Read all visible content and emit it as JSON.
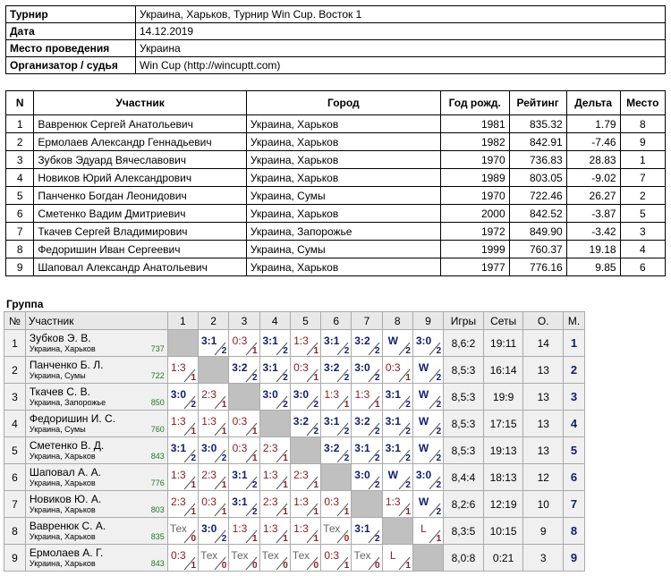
{
  "info": [
    {
      "key": "Турнир",
      "value": "Украина, Харьков, Турнир Win Cup. Восток 1"
    },
    {
      "key": "Дата",
      "value": "14.12.2019"
    },
    {
      "key": "Место проведения",
      "value": "Украина"
    },
    {
      "key": "Организатор / судья",
      "value": "Win Cup (http://wincuptt.com)"
    }
  ],
  "participants": {
    "headers": [
      "N",
      "Участник",
      "Город",
      "Год рожд.",
      "Рейтинг",
      "Дельта",
      "Место"
    ],
    "rows": [
      [
        "1",
        "Вавренюк Сергей Анатольевич",
        "Украина, Харьков",
        "1981",
        "835.32",
        "1.79",
        "8"
      ],
      [
        "2",
        "Ермолаев Александр Геннадьевич",
        "Украина, Харьков",
        "1982",
        "842.91",
        "-7.46",
        "9"
      ],
      [
        "3",
        "Зубков Эдуард Вячеславович",
        "Украина, Харьков",
        "1970",
        "736.83",
        "28.83",
        "1"
      ],
      [
        "4",
        "Новиков Юрий Александрович",
        "Украина, Харьков",
        "1989",
        "803.05",
        "-9.02",
        "7"
      ],
      [
        "5",
        "Панченко Богдан Леонидович",
        "Украина, Сумы",
        "1970",
        "722.46",
        "26.27",
        "2"
      ],
      [
        "6",
        "Сметенко Вадим Дмитриевич",
        "Украина, Харьков",
        "2000",
        "842.52",
        "-3.87",
        "5"
      ],
      [
        "7",
        "Ткачев Сергей Владимирович",
        "Украина, Запорожье",
        "1972",
        "849.90",
        "-3.42",
        "3"
      ],
      [
        "8",
        "Федоришин Иван Сергеевич",
        "Украина, Сумы",
        "1999",
        "760.37",
        "19.18",
        "4"
      ],
      [
        "9",
        "Шаповал Александр Анатольевич",
        "Украина, Харьков",
        "1977",
        "776.16",
        "9.85",
        "6"
      ]
    ]
  },
  "group": {
    "title": "Группа",
    "headers": [
      "№",
      "Участник",
      "1",
      "2",
      "3",
      "4",
      "5",
      "6",
      "7",
      "8",
      "9",
      "Игры",
      "Сеты",
      "О.",
      "М."
    ],
    "rows": [
      {
        "n": "1",
        "name": "Зубков Э. В.",
        "city": "Украина, Харьков",
        "rating": "737",
        "cells": [
          null,
          [
            "3:1",
            "2"
          ],
          [
            "0:3",
            "1"
          ],
          [
            "3:1",
            "2"
          ],
          [
            "1:3",
            "1"
          ],
          [
            "3:1",
            "2"
          ],
          [
            "3:2",
            "2"
          ],
          [
            "W",
            "2"
          ],
          [
            "3:0",
            "2"
          ]
        ],
        "games": "8,6:2",
        "sets": "19:11",
        "points": "14",
        "place": "1"
      },
      {
        "n": "2",
        "name": "Панченко Б. Л.",
        "city": "Украина, Сумы",
        "rating": "722",
        "cells": [
          [
            "1:3",
            "1"
          ],
          null,
          [
            "3:2",
            "2"
          ],
          [
            "3:1",
            "2"
          ],
          [
            "0:3",
            "1"
          ],
          [
            "3:2",
            "2"
          ],
          [
            "3:0",
            "2"
          ],
          [
            "0:3",
            "1"
          ],
          [
            "W",
            "2"
          ]
        ],
        "games": "8,5:3",
        "sets": "16:14",
        "points": "13",
        "place": "2"
      },
      {
        "n": "3",
        "name": "Ткачев С. В.",
        "city": "Украина, Запорожье",
        "rating": "850",
        "cells": [
          [
            "3:0",
            "2"
          ],
          [
            "2:3",
            "1"
          ],
          null,
          [
            "3:0",
            "2"
          ],
          [
            "3:0",
            "2"
          ],
          [
            "1:3",
            "1"
          ],
          [
            "1:3",
            "1"
          ],
          [
            "3:1",
            "2"
          ],
          [
            "W",
            "2"
          ]
        ],
        "games": "8,5:3",
        "sets": "19:9",
        "points": "13",
        "place": "3"
      },
      {
        "n": "4",
        "name": "Федоришин И. С.",
        "city": "Украина, Сумы",
        "rating": "760",
        "cells": [
          [
            "1:3",
            "1"
          ],
          [
            "1:3",
            "1"
          ],
          [
            "0:3",
            "1"
          ],
          null,
          [
            "3:2",
            "2"
          ],
          [
            "3:1",
            "2"
          ],
          [
            "3:2",
            "2"
          ],
          [
            "3:1",
            "2"
          ],
          [
            "W",
            "2"
          ]
        ],
        "games": "8,5:3",
        "sets": "17:15",
        "points": "13",
        "place": "4"
      },
      {
        "n": "5",
        "name": "Сметенко В. Д.",
        "city": "Украина, Харьков",
        "rating": "843",
        "cells": [
          [
            "3:1",
            "2"
          ],
          [
            "3:0",
            "2"
          ],
          [
            "0:3",
            "1"
          ],
          [
            "2:3",
            "1"
          ],
          null,
          [
            "3:2",
            "2"
          ],
          [
            "3:1",
            "2"
          ],
          [
            "3:1",
            "2"
          ],
          [
            "W",
            "2"
          ]
        ],
        "games": "8,5:3",
        "sets": "19:13",
        "points": "13",
        "place": "5"
      },
      {
        "n": "6",
        "name": "Шаповал А. А.",
        "city": "Украина, Харьков",
        "rating": "776",
        "cells": [
          [
            "1:3",
            "1"
          ],
          [
            "2:3",
            "1"
          ],
          [
            "3:1",
            "2"
          ],
          [
            "1:3",
            "1"
          ],
          [
            "2:3",
            "1"
          ],
          null,
          [
            "3:0",
            "2"
          ],
          [
            "W",
            "2"
          ],
          [
            "3:0",
            "2"
          ]
        ],
        "games": "8,4:4",
        "sets": "18:13",
        "points": "12",
        "place": "6"
      },
      {
        "n": "7",
        "name": "Новиков Ю. А.",
        "city": "Украина, Харьков",
        "rating": "803",
        "cells": [
          [
            "2:3",
            "1"
          ],
          [
            "0:3",
            "1"
          ],
          [
            "3:1",
            "2"
          ],
          [
            "2:3",
            "1"
          ],
          [
            "1:3",
            "1"
          ],
          [
            "0:3",
            "1"
          ],
          null,
          [
            "1:3",
            "1"
          ],
          [
            "W",
            "2"
          ]
        ],
        "games": "8,2:6",
        "sets": "12:19",
        "points": "10",
        "place": "7"
      },
      {
        "n": "8",
        "name": "Вавренюк С. А.",
        "city": "Украина, Харьков",
        "rating": "835",
        "cells": [
          [
            "Тех",
            "0"
          ],
          [
            "3:0",
            "2"
          ],
          [
            "1:3",
            "1"
          ],
          [
            "1:3",
            "1"
          ],
          [
            "1:3",
            "1"
          ],
          [
            "Тех",
            "0"
          ],
          [
            "3:1",
            "2"
          ],
          null,
          [
            "L",
            "1"
          ]
        ],
        "games": "8,3:5",
        "sets": "10:15",
        "points": "9",
        "place": "8"
      },
      {
        "n": "9",
        "name": "Ермолаев А. Г.",
        "city": "Украина, Харьков",
        "rating": "843",
        "cells": [
          [
            "0:3",
            "1"
          ],
          [
            "Тех",
            "0"
          ],
          [
            "Тех",
            "0"
          ],
          [
            "Тех",
            "0"
          ],
          [
            "Тех",
            "0"
          ],
          [
            "0:3",
            "1"
          ],
          [
            "Тех",
            "0"
          ],
          [
            "L",
            "1"
          ],
          null
        ],
        "games": "8,0:8",
        "sets": "0:21",
        "points": "3",
        "place": "9"
      }
    ]
  },
  "colors": {
    "win": "#0d1f6e",
    "loss": "#8b1b1b",
    "self_cell": "#c0c0c0",
    "rating": "#1f7a1f"
  }
}
